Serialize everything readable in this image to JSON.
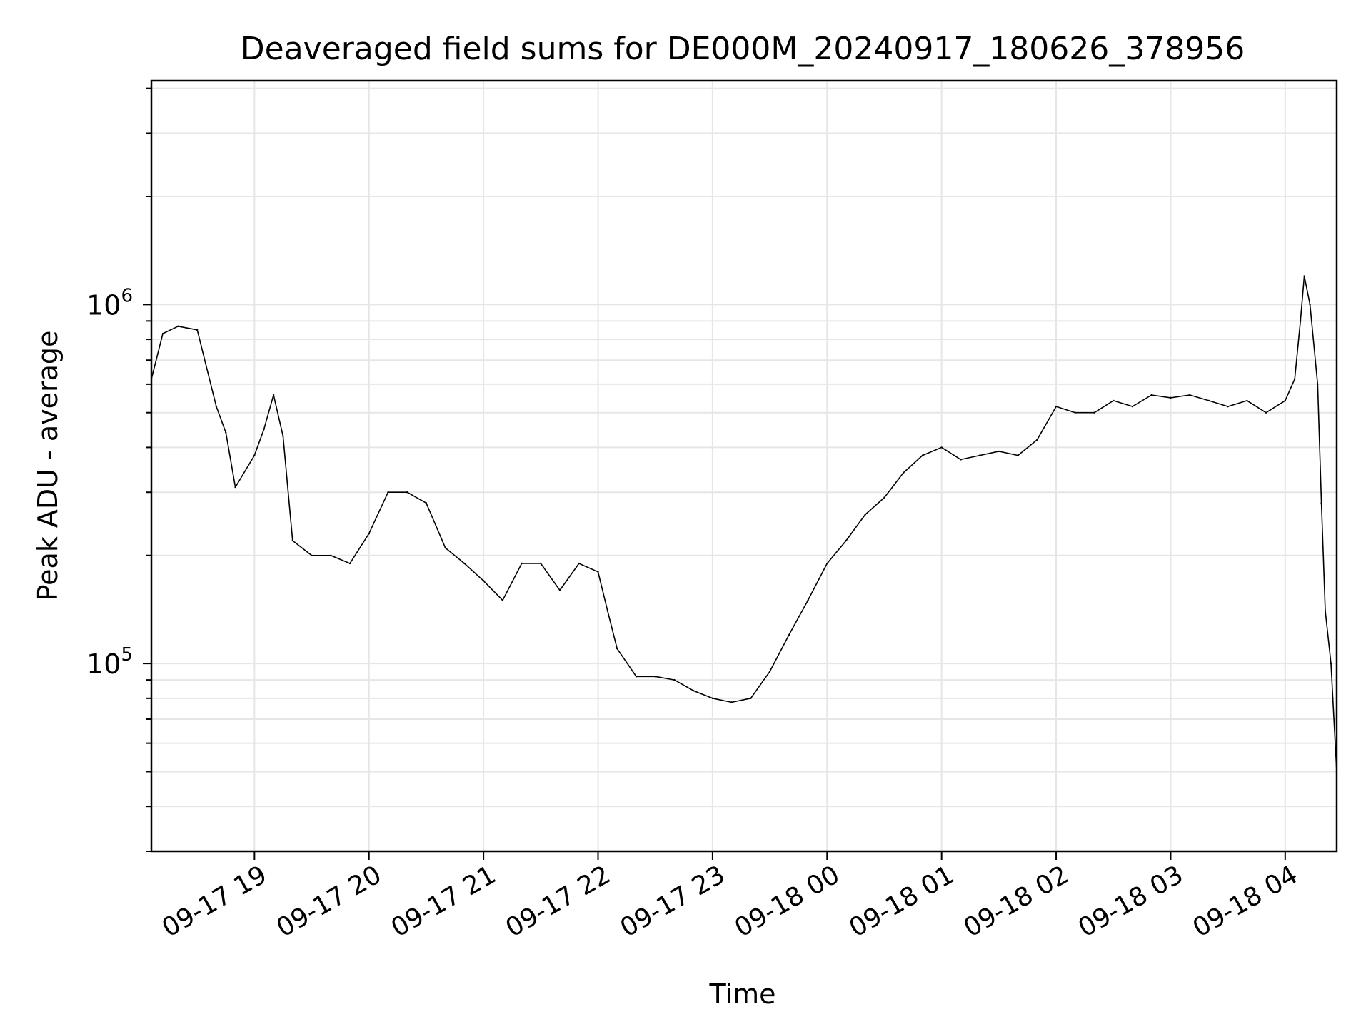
{
  "chart_data": {
    "type": "line",
    "title": "Deaveraged field sums for DE000M_20240917_180626_378956",
    "xlabel": "Time",
    "ylabel": "Peak ADU - average",
    "yscale": "log",
    "grid": "on (major and minor)",
    "legend": "none",
    "xlim": [
      "2024-09-17 18:06",
      "2024-09-18 04:27"
    ],
    "ylim": [
      30000,
      4200000
    ],
    "x_ticks": [
      "09-17 19",
      "09-17 20",
      "09-17 21",
      "09-17 22",
      "09-17 23",
      "09-18 00",
      "09-18 01",
      "09-18 02",
      "09-18 03",
      "09-18 04"
    ],
    "y_ticks": [
      {
        "value": 100000,
        "base": "10",
        "exp": "5"
      },
      {
        "value": 1000000,
        "base": "10",
        "exp": "6"
      }
    ],
    "series": [
      {
        "color": "#000000",
        "values": [
          [
            "2024-09-17 18:06",
            620000
          ],
          [
            "2024-09-17 18:12",
            830000
          ],
          [
            "2024-09-17 18:20",
            870000
          ],
          [
            "2024-09-17 18:30",
            850000
          ],
          [
            "2024-09-17 18:40",
            520000
          ],
          [
            "2024-09-17 18:45",
            440000
          ],
          [
            "2024-09-17 18:50",
            310000
          ],
          [
            "2024-09-17 19:00",
            380000
          ],
          [
            "2024-09-17 19:05",
            450000
          ],
          [
            "2024-09-17 19:10",
            560000
          ],
          [
            "2024-09-17 19:15",
            430000
          ],
          [
            "2024-09-17 19:20",
            220000
          ],
          [
            "2024-09-17 19:30",
            200000
          ],
          [
            "2024-09-17 19:40",
            200000
          ],
          [
            "2024-09-17 19:50",
            190000
          ],
          [
            "2024-09-17 20:00",
            230000
          ],
          [
            "2024-09-17 20:10",
            300000
          ],
          [
            "2024-09-17 20:20",
            300000
          ],
          [
            "2024-09-17 20:30",
            280000
          ],
          [
            "2024-09-17 20:40",
            210000
          ],
          [
            "2024-09-17 20:50",
            190000
          ],
          [
            "2024-09-17 21:00",
            170000
          ],
          [
            "2024-09-17 21:10",
            150000
          ],
          [
            "2024-09-17 21:20",
            190000
          ],
          [
            "2024-09-17 21:30",
            190000
          ],
          [
            "2024-09-17 21:40",
            160000
          ],
          [
            "2024-09-17 21:50",
            190000
          ],
          [
            "2024-09-17 22:00",
            180000
          ],
          [
            "2024-09-17 22:05",
            140000
          ],
          [
            "2024-09-17 22:10",
            110000
          ],
          [
            "2024-09-17 22:20",
            92000
          ],
          [
            "2024-09-17 22:30",
            92000
          ],
          [
            "2024-09-17 22:40",
            90000
          ],
          [
            "2024-09-17 22:50",
            84000
          ],
          [
            "2024-09-17 23:00",
            80000
          ],
          [
            "2024-09-17 23:10",
            78000
          ],
          [
            "2024-09-17 23:20",
            80000
          ],
          [
            "2024-09-17 23:30",
            95000
          ],
          [
            "2024-09-17 23:40",
            120000
          ],
          [
            "2024-09-17 23:50",
            150000
          ],
          [
            "2024-09-18 00:00",
            190000
          ],
          [
            "2024-09-18 00:10",
            220000
          ],
          [
            "2024-09-18 00:20",
            260000
          ],
          [
            "2024-09-18 00:30",
            290000
          ],
          [
            "2024-09-18 00:40",
            340000
          ],
          [
            "2024-09-18 00:50",
            380000
          ],
          [
            "2024-09-18 01:00",
            400000
          ],
          [
            "2024-09-18 01:10",
            370000
          ],
          [
            "2024-09-18 01:20",
            380000
          ],
          [
            "2024-09-18 01:30",
            390000
          ],
          [
            "2024-09-18 01:40",
            380000
          ],
          [
            "2024-09-18 01:50",
            420000
          ],
          [
            "2024-09-18 02:00",
            520000
          ],
          [
            "2024-09-18 02:10",
            500000
          ],
          [
            "2024-09-18 02:20",
            500000
          ],
          [
            "2024-09-18 02:30",
            540000
          ],
          [
            "2024-09-18 02:40",
            520000
          ],
          [
            "2024-09-18 02:50",
            560000
          ],
          [
            "2024-09-18 03:00",
            550000
          ],
          [
            "2024-09-18 03:10",
            560000
          ],
          [
            "2024-09-18 03:20",
            540000
          ],
          [
            "2024-09-18 03:30",
            520000
          ],
          [
            "2024-09-18 03:40",
            540000
          ],
          [
            "2024-09-18 03:50",
            500000
          ],
          [
            "2024-09-18 04:00",
            540000
          ],
          [
            "2024-09-18 04:05",
            620000
          ],
          [
            "2024-09-18 04:08",
            900000
          ],
          [
            "2024-09-18 04:10",
            1200000
          ],
          [
            "2024-09-18 04:13",
            1000000
          ],
          [
            "2024-09-18 04:17",
            600000
          ],
          [
            "2024-09-18 04:19",
            280000
          ],
          [
            "2024-09-18 04:21",
            140000
          ],
          [
            "2024-09-18 04:24",
            100000
          ],
          [
            "2024-09-18 04:27",
            50000
          ]
        ]
      }
    ]
  }
}
